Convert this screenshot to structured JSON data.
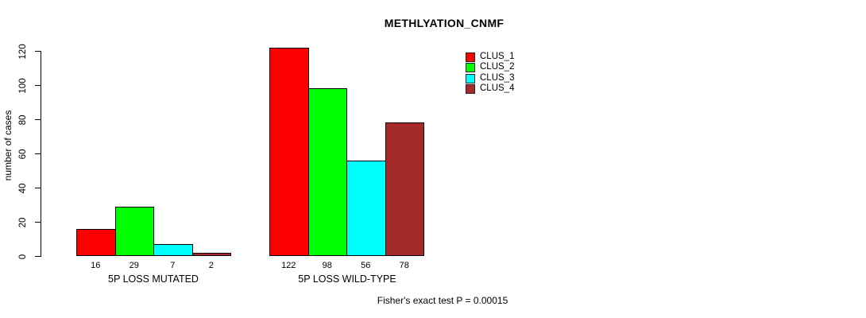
{
  "title": "METHLYATION_CNMF",
  "footnote": "Fisher's exact test P = 0.00015",
  "chart_data": {
    "type": "bar",
    "title": "METHLYATION_CNMF",
    "ylabel": "number of cases",
    "xlabel": "",
    "ylim": [
      0,
      120
    ],
    "yticks": [
      0,
      20,
      40,
      60,
      80,
      100,
      120
    ],
    "grid": false,
    "legend_position": "top-right",
    "background": "#ffffff",
    "bar_border_color": "#000000",
    "categories": [
      "5P LOSS MUTATED",
      "5P LOSS WILD-TYPE"
    ],
    "series": [
      {
        "name": "CLUS_1",
        "color": "#ff0000",
        "values": [
          16,
          122
        ]
      },
      {
        "name": "CLUS_2",
        "color": "#00ff00",
        "values": [
          29,
          98
        ]
      },
      {
        "name": "CLUS_3",
        "color": "#00ffff",
        "values": [
          7,
          56
        ]
      },
      {
        "name": "CLUS_4",
        "color": "#a52a2a",
        "values": [
          2,
          78
        ]
      }
    ],
    "footnote": "Fisher's exact test P = 0.00015"
  }
}
